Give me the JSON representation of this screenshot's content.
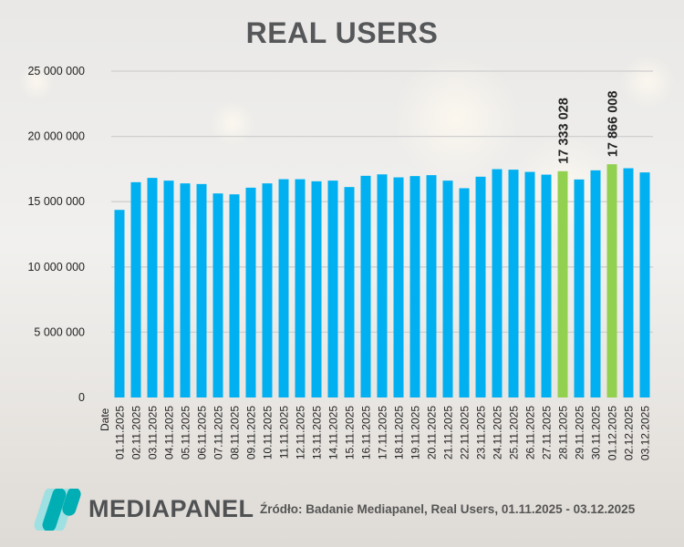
{
  "chart_data": {
    "type": "bar",
    "title": "REAL USERS",
    "xlabel": "Date",
    "ylabel": "",
    "ylim": [
      0,
      25000000
    ],
    "yticks": [
      0,
      5000000,
      10000000,
      15000000,
      20000000,
      25000000
    ],
    "ytick_labels": [
      "0",
      "5 000 000",
      "10 000 000",
      "15 000 000",
      "20 000 000",
      "25 000 000"
    ],
    "grid": true,
    "colors": {
      "default": "#00b0f0",
      "highlight": "#92d050"
    },
    "categories": [
      "01.11.2025",
      "02.11.2025",
      "03.11.2025",
      "04.11.2025",
      "05.11.2025",
      "06.11.2025",
      "07.11.2025",
      "08.11.2025",
      "09.11.2025",
      "10.11.2025",
      "11.11.2025",
      "12.11.2025",
      "13.11.2025",
      "14.11.2025",
      "15.11.2025",
      "16.11.2025",
      "17.11.2025",
      "18.11.2025",
      "19.11.2025",
      "20.11.2025",
      "21.11.2025",
      "22.11.2025",
      "23.11.2025",
      "24.11.2025",
      "25.11.2025",
      "26.11.2025",
      "27.11.2025",
      "28.11.2025",
      "29.11.2025",
      "30.11.2025",
      "01.12.2025",
      "02.12.2025",
      "03.12.2025"
    ],
    "values": [
      14370000,
      16490000,
      16820000,
      16610000,
      16400000,
      16350000,
      15630000,
      15560000,
      16070000,
      16400000,
      16720000,
      16720000,
      16560000,
      16610000,
      16120000,
      16980000,
      17090000,
      16860000,
      16960000,
      17030000,
      16610000,
      16030000,
      16910000,
      17490000,
      17450000,
      17280000,
      17070000,
      17333028,
      16700000,
      17400000,
      17866008,
      17560000,
      17240000
    ],
    "highlighted": [
      "28.11.2025",
      "01.12.2025"
    ],
    "data_labels": {
      "28.11.2025": "17 333 028",
      "01.12.2025": "17 866 008"
    }
  },
  "brand": {
    "name": "MEDIAPANEL"
  },
  "source": "Źródło: Badanie Mediapanel, Real Users, 01.11.2025 - 03.12.2025"
}
